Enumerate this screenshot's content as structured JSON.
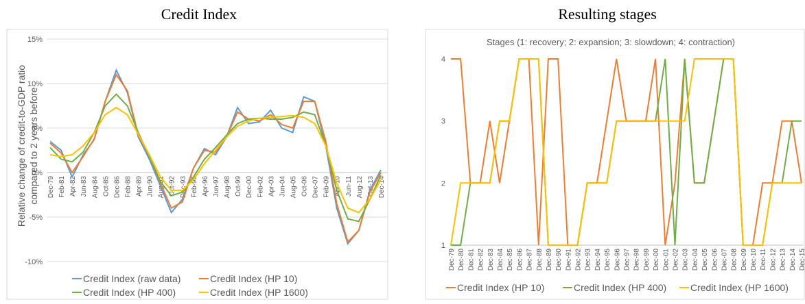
{
  "chart_data": [
    {
      "type": "line",
      "title": "Credit Index",
      "y_label": [
        "Relative change of credit-to-GDP ratio",
        "compared to 2 years before"
      ],
      "categories": [
        "Dec-79",
        "Feb-81",
        "Apr-82",
        "Jun-83",
        "Aug-84",
        "Oct-85",
        "Dec-86",
        "Feb-88",
        "Apr-89",
        "Jun-90",
        "Aug-91",
        "Oct-92",
        "Dec-93",
        "Feb-95",
        "Apr-96",
        "Jun-97",
        "Aug-98",
        "Oct-99",
        "Dec-00",
        "Feb-02",
        "Apr-03",
        "Jun-04",
        "Aug-05",
        "Oct-06",
        "Dec-07",
        "Feb-09",
        "Apr-10",
        "Jun-11",
        "Aug-12",
        "Oct-13",
        "Dec-14"
      ],
      "series": [
        {
          "name": "Credit Index (raw data)",
          "color": "#5b9bd5",
          "values": [
            3.5,
            2.5,
            -0.5,
            2,
            3.7,
            8,
            11.5,
            9,
            4,
            1.5,
            -1.5,
            -4.5,
            -3,
            0.5,
            2.7,
            2,
            4,
            7.3,
            5.5,
            5.7,
            7,
            5,
            4.5,
            8.5,
            8,
            3,
            -4,
            -8,
            -6.5,
            -2,
            0.3
          ]
        },
        {
          "name": "Credit Index (HP 10)",
          "color": "#ed7d31",
          "values": [
            3.3,
            2.2,
            0,
            1.8,
            3.8,
            8,
            11,
            9.2,
            4.2,
            1.8,
            -1.2,
            -4,
            -3.3,
            0.5,
            2.5,
            2.3,
            4,
            6.8,
            6,
            5.8,
            6.5,
            5.4,
            5,
            8,
            8,
            3.5,
            -3.5,
            -7.8,
            -6.5,
            -2.2,
            0
          ]
        },
        {
          "name": "Credit Index (HP 400)",
          "color": "#70ad47",
          "values": [
            2.8,
            1.5,
            1.2,
            2.3,
            4.5,
            7.5,
            8.8,
            7.5,
            4.5,
            1.8,
            -1,
            -2.6,
            -2.2,
            -0.5,
            1.5,
            2.8,
            4.2,
            5.5,
            6,
            6.1,
            6,
            6,
            6.2,
            6.8,
            6.5,
            3,
            -2,
            -5.2,
            -5.5,
            -3,
            -0.3
          ]
        },
        {
          "name": "Credit Index (HP 1600)",
          "color": "#ffc000",
          "values": [
            2,
            1.8,
            2,
            3,
            4.5,
            6.5,
            7.3,
            6.5,
            4.3,
            2,
            -0.5,
            -2,
            -2,
            -0.8,
            1,
            2.5,
            4,
            5.2,
            5.8,
            6.1,
            6.2,
            6.3,
            6.4,
            6.2,
            5.5,
            3,
            -1.2,
            -4,
            -4.5,
            -3,
            -0.8
          ]
        }
      ],
      "ylim": [
        -10,
        15
      ],
      "yticks": [
        {
          "value": -10,
          "label": "-10%"
        },
        {
          "value": -5,
          "label": "-5%"
        },
        {
          "value": 0,
          "label": "0%"
        },
        {
          "value": 5,
          "label": "5%"
        },
        {
          "value": 10,
          "label": "10%"
        },
        {
          "value": 15,
          "label": "15%"
        }
      ],
      "grid": true,
      "legend": "bottom"
    },
    {
      "type": "line",
      "title": "Resulting stages",
      "subtitle": "Stages (1: recovery; 2: expansion; 3: slowdown; 4: contraction)",
      "categories": [
        "Dec-79",
        "Dec-80",
        "Dec-81",
        "Dec-82",
        "Dec-83",
        "Dec-84",
        "Dec-85",
        "Dec-86",
        "Dec-87",
        "Dec-88",
        "Dec-89",
        "Dec-90",
        "Dec-91",
        "Dec-92",
        "Dec-93",
        "Dec-94",
        "Dec-95",
        "Dec-96",
        "Dec-97",
        "Dec-98",
        "Dec-99",
        "Dec-00",
        "Dec-01",
        "Dec-02",
        "Dec-03",
        "Dec-04",
        "Dec-05",
        "Dec-06",
        "Dec-07",
        "Dec-08",
        "Dec-09",
        "Dec-10",
        "Dec-11",
        "Dec-12",
        "Dec-13",
        "Dec-14",
        "Dec-15"
      ],
      "series": [
        {
          "name": "Credit Index (HP 10)",
          "color": "#ed7d31",
          "values": [
            4,
            4,
            2,
            2,
            3,
            2,
            3,
            4,
            4,
            1,
            4,
            4,
            1,
            1,
            2,
            2,
            3,
            4,
            3,
            3,
            3,
            4,
            1,
            2,
            4,
            2,
            2,
            3,
            4,
            4,
            1,
            1,
            2,
            2,
            3,
            3,
            2
          ]
        },
        {
          "name": "Credit Index (HP 400)",
          "color": "#70ad47",
          "values": [
            1,
            1,
            2,
            2,
            2,
            3,
            3,
            4,
            4,
            4,
            1,
            1,
            1,
            1,
            2,
            2,
            2,
            3,
            3,
            3,
            3,
            3,
            4,
            1,
            4,
            2,
            2,
            3,
            4,
            4,
            1,
            1,
            1,
            2,
            2,
            3,
            3
          ]
        },
        {
          "name": "Credit Index (HP 1600)",
          "color": "#ffc000",
          "values": [
            1,
            2,
            2,
            2,
            2,
            3,
            3,
            4,
            4,
            4,
            1,
            1,
            1,
            1,
            2,
            2,
            2,
            3,
            3,
            3,
            3,
            3,
            3,
            3,
            3,
            4,
            4,
            4,
            4,
            4,
            1,
            1,
            1,
            2,
            2,
            2,
            2
          ]
        }
      ],
      "ylim": [
        1,
        4
      ],
      "yticks": [
        1,
        2,
        3,
        4
      ],
      "grid": false,
      "legend": "bottom"
    }
  ]
}
